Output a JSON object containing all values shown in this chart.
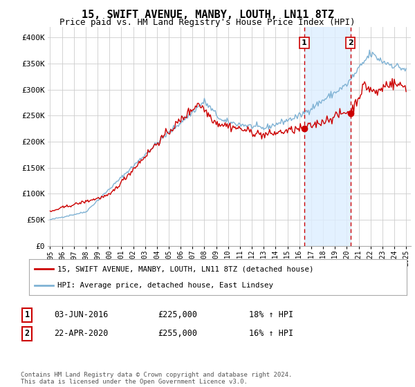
{
  "title": "15, SWIFT AVENUE, MANBY, LOUTH, LN11 8TZ",
  "subtitle": "Price paid vs. HM Land Registry's House Price Index (HPI)",
  "title_fontsize": 11,
  "subtitle_fontsize": 9,
  "ylabel_ticks": [
    "£0",
    "£50K",
    "£100K",
    "£150K",
    "£200K",
    "£250K",
    "£300K",
    "£350K",
    "£400K"
  ],
  "ytick_values": [
    0,
    50000,
    100000,
    150000,
    200000,
    250000,
    300000,
    350000,
    400000
  ],
  "ylim": [
    0,
    420000
  ],
  "background_color": "#ffffff",
  "plot_bg_color": "#ffffff",
  "grid_color": "#cccccc",
  "red_color": "#cc0000",
  "blue_color": "#7fb2d4",
  "shade_color": "#ddeeff",
  "marker1_x": 2016.42,
  "marker1_y": 225000,
  "marker2_x": 2020.31,
  "marker2_y": 255000,
  "marker1_label": "1",
  "marker2_label": "2",
  "annotation1": "03-JUN-2016",
  "annotation1_price": "£225,000",
  "annotation1_hpi": "18% ↑ HPI",
  "annotation2": "22-APR-2020",
  "annotation2_price": "£255,000",
  "annotation2_hpi": "16% ↑ HPI",
  "legend_line1": "15, SWIFT AVENUE, MANBY, LOUTH, LN11 8TZ (detached house)",
  "legend_line2": "HPI: Average price, detached house, East Lindsey",
  "footer": "Contains HM Land Registry data © Crown copyright and database right 2024.\nThis data is licensed under the Open Government Licence v3.0.",
  "xtick_years": [
    1995,
    1996,
    1997,
    1998,
    1999,
    2000,
    2001,
    2002,
    2003,
    2004,
    2005,
    2006,
    2007,
    2008,
    2009,
    2010,
    2011,
    2012,
    2013,
    2014,
    2015,
    2016,
    2017,
    2018,
    2019,
    2020,
    2021,
    2022,
    2023,
    2024,
    2025
  ]
}
